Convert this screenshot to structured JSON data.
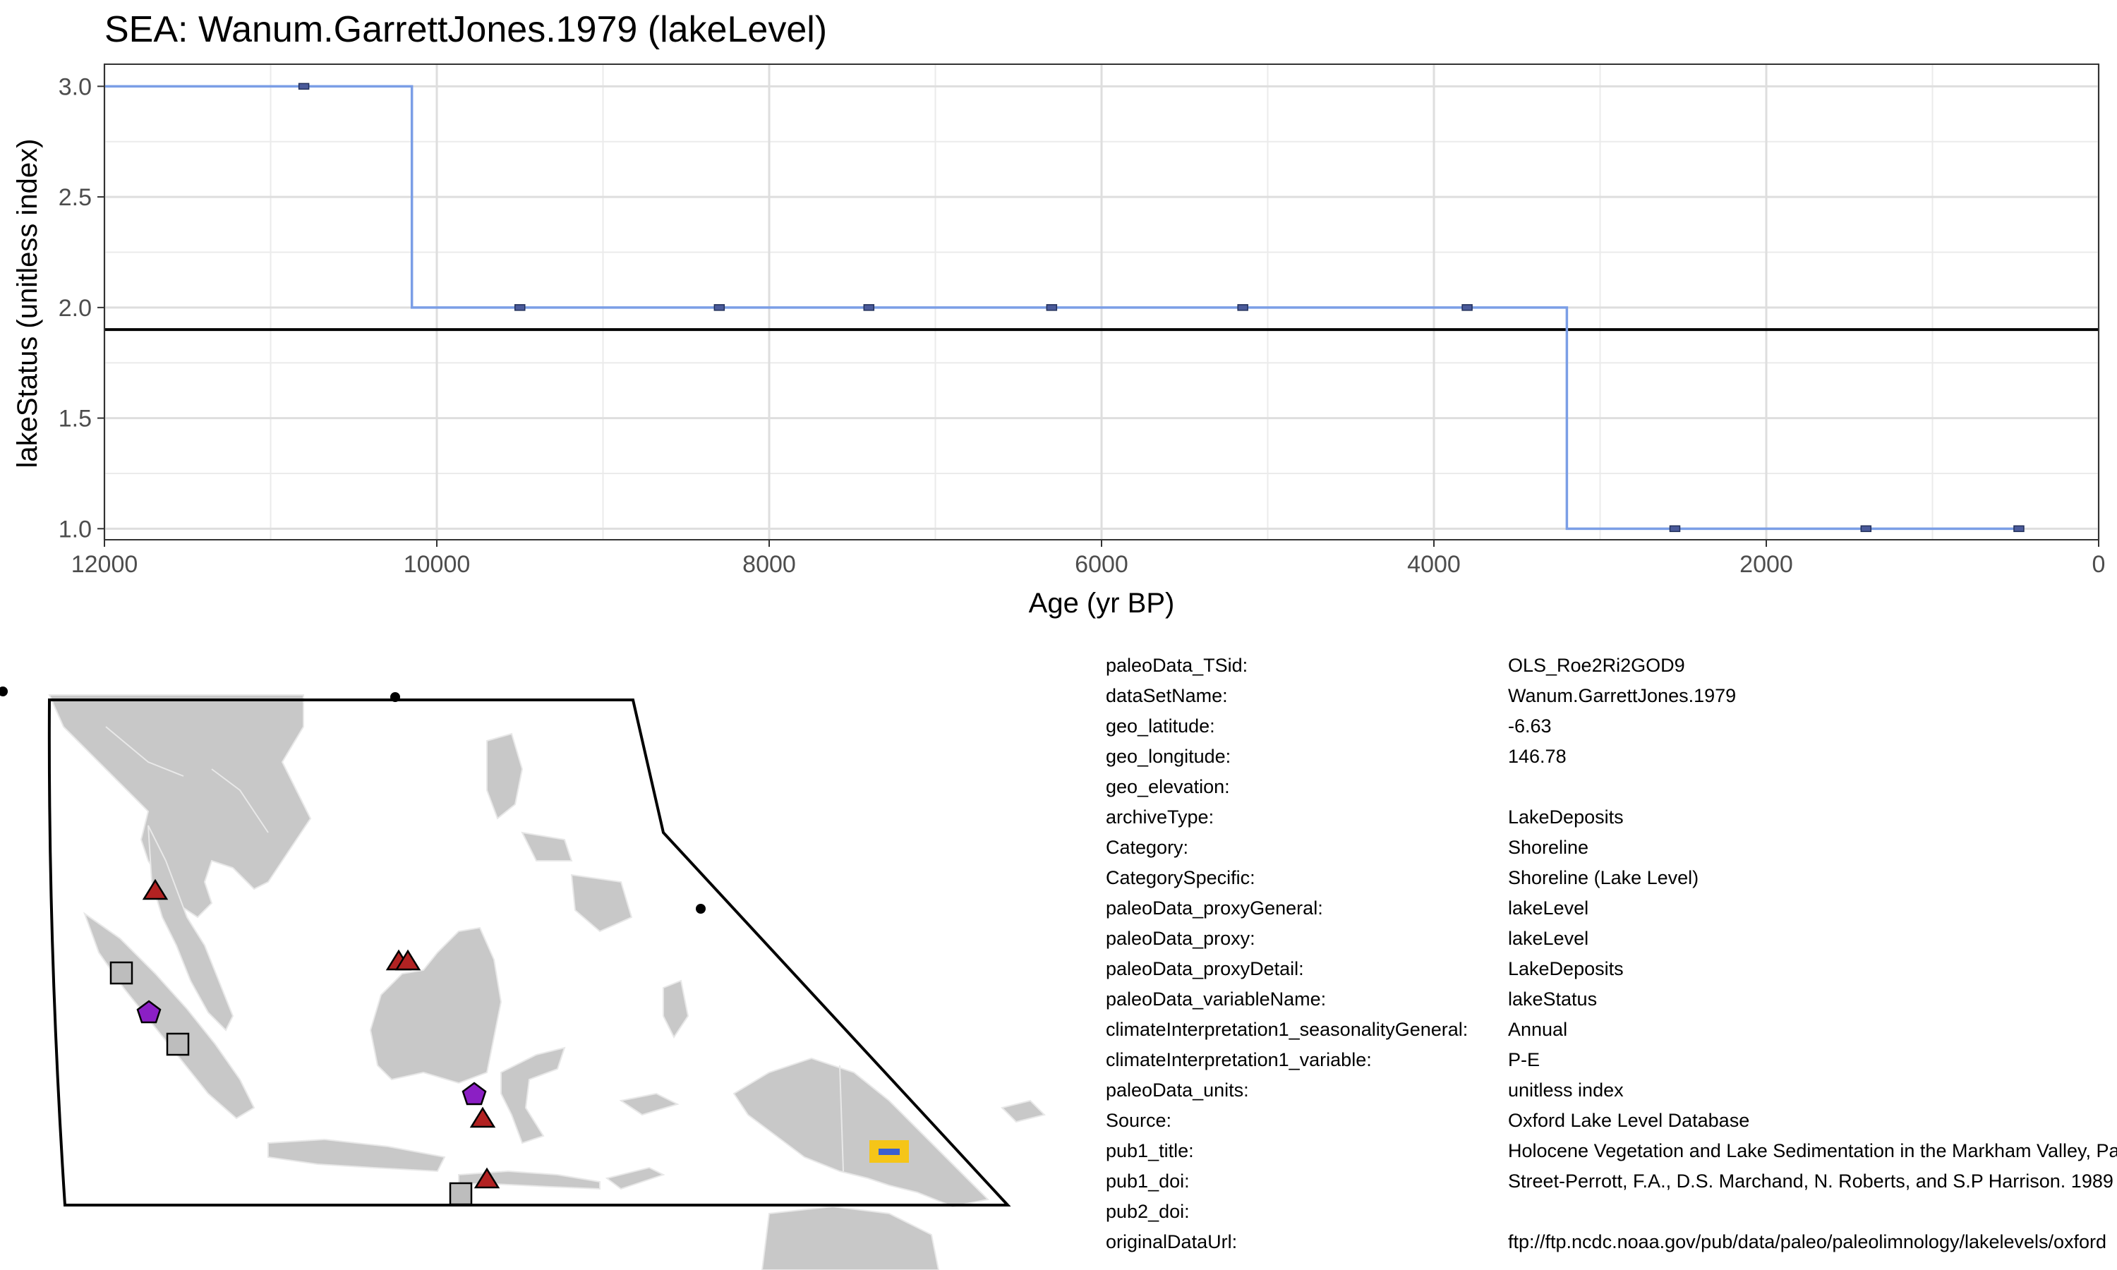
{
  "chart_data": {
    "type": "line",
    "title": "SEA: Wanum.GarrettJones.1979 (lakeLevel)",
    "xlabel": "Age (yr BP)",
    "ylabel": "lakeStatus (unitless index)",
    "xlim": [
      12000,
      0
    ],
    "ylim": [
      3.1,
      0.95
    ],
    "x_reversed": true,
    "y_reversed": true,
    "x_ticks": [
      12000,
      10000,
      8000,
      6000,
      4000,
      2000,
      0
    ],
    "x_tick_labels": [
      "12000",
      "10000",
      "8000",
      "6000",
      "4000",
      "2000",
      "0"
    ],
    "y_ticks": [
      1.0,
      1.5,
      2.0,
      2.5,
      3.0
    ],
    "y_tick_labels": [
      "1.0",
      "1.5",
      "2.0",
      "2.5",
      "3.0"
    ],
    "grid": true,
    "step": true,
    "series": [
      {
        "color": "#7b9ee6",
        "x": [
          12000,
          10800,
          9500,
          8300,
          7400,
          6300,
          5150,
          3800,
          2550,
          1400,
          480
        ],
        "y": [
          3.0,
          3.0,
          2.0,
          2.0,
          2.0,
          2.0,
          2.0,
          2.0,
          1.0,
          1.0,
          1.0
        ]
      }
    ],
    "step_edges": [
      10150,
      3200
    ],
    "marker_color": "#4a5a9a",
    "reference_line": {
      "y": 1.9,
      "color": "#000000"
    }
  },
  "map": {
    "ocean_color": "#ffffff",
    "land_color": "#c8c8c8",
    "markers": [
      {
        "shape": "triangle",
        "color": "#b22222"
      },
      {
        "shape": "triangle",
        "color": "#b22222"
      },
      {
        "shape": "triangle",
        "color": "#b22222"
      },
      {
        "shape": "triangle",
        "color": "#b22222"
      },
      {
        "shape": "triangle",
        "color": "#b22222"
      },
      {
        "shape": "square",
        "color": "#bdbdbd"
      },
      {
        "shape": "square",
        "color": "#bdbdbd"
      },
      {
        "shape": "square",
        "color": "#bdbdbd"
      },
      {
        "shape": "pentagon",
        "color": "#8b1fc4"
      },
      {
        "shape": "pentagon",
        "color": "#8b1fc4"
      },
      {
        "shape": "highlight",
        "color": "#f5c518"
      }
    ]
  },
  "metadata": [
    {
      "key": "paleoData_TSid:",
      "value": "OLS_Roe2Ri2GOD9"
    },
    {
      "key": "dataSetName:",
      "value": "Wanum.GarrettJones.1979"
    },
    {
      "key": "geo_latitude:",
      "value": "-6.63"
    },
    {
      "key": "geo_longitude:",
      "value": "146.78"
    },
    {
      "key": "geo_elevation:",
      "value": ""
    },
    {
      "key": "archiveType:",
      "value": "LakeDeposits"
    },
    {
      "key": "Category:",
      "value": "Shoreline"
    },
    {
      "key": "CategorySpecific:",
      "value": "Shoreline (Lake Level)"
    },
    {
      "key": "paleoData_proxyGeneral:",
      "value": "lakeLevel"
    },
    {
      "key": "paleoData_proxy:",
      "value": "lakeLevel"
    },
    {
      "key": "paleoData_proxyDetail:",
      "value": "LakeDeposits"
    },
    {
      "key": "paleoData_variableName:",
      "value": "lakeStatus"
    },
    {
      "key": "climateInterpretation1_seasonalityGeneral:",
      "value": "Annual"
    },
    {
      "key": "climateInterpretation1_variable:",
      "value": "P-E"
    },
    {
      "key": "paleoData_units:",
      "value": "unitless index"
    },
    {
      "key": "Source:",
      "value": "Oxford Lake Level Database"
    },
    {
      "key": "pub1_title:",
      "value": "Holocene Vegetation and Lake Sedimentation in the Markham Valley, Papua New Guinea"
    },
    {
      "key": "pub1_doi:",
      "value": "Street-Perrott, F.A., D.S. Marchand, N. Roberts, and S.P Harrison. 1989"
    },
    {
      "key": "pub2_doi:",
      "value": ""
    },
    {
      "key": "originalDataUrl:",
      "value": "ftp://ftp.ncdc.noaa.gov/pub/data/paleo/paleolimnology/lakelevels/oxford"
    }
  ]
}
